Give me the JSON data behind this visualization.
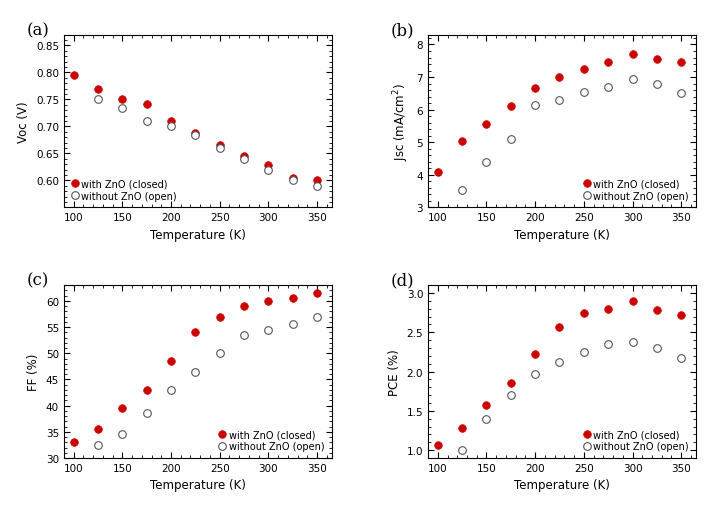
{
  "temp_with": [
    100,
    125,
    150,
    175,
    200,
    225,
    250,
    275,
    300,
    325,
    350
  ],
  "temp_without": [
    100,
    125,
    150,
    175,
    200,
    225,
    250,
    275,
    300,
    325,
    350
  ],
  "voc_with": [
    0.795,
    0.77,
    0.75,
    0.742,
    0.71,
    0.688,
    0.665,
    0.645,
    0.628,
    0.605,
    0.601
  ],
  "voc_without": [
    null,
    0.75,
    0.735,
    0.71,
    0.7,
    0.685,
    0.66,
    0.64,
    0.62,
    0.6,
    0.59
  ],
  "jsc_with": [
    4.1,
    5.05,
    5.55,
    6.1,
    6.65,
    7.0,
    7.25,
    7.45,
    7.7,
    7.55,
    7.45
  ],
  "jsc_without": [
    null,
    3.55,
    4.4,
    5.1,
    6.15,
    6.3,
    6.55,
    6.7,
    6.95,
    6.8,
    6.5
  ],
  "ff_with": [
    33.0,
    35.5,
    39.5,
    43.0,
    48.5,
    54.0,
    57.0,
    59.0,
    60.0,
    60.5,
    61.5
  ],
  "ff_without": [
    null,
    32.5,
    34.5,
    38.5,
    43.0,
    46.5,
    50.0,
    53.5,
    54.5,
    55.5,
    57.0
  ],
  "pce_with": [
    1.07,
    1.28,
    1.58,
    1.85,
    2.22,
    2.57,
    2.75,
    2.8,
    2.9,
    2.78,
    2.72
  ],
  "pce_without": [
    null,
    1.0,
    1.4,
    1.7,
    1.97,
    2.12,
    2.25,
    2.35,
    2.38,
    2.3,
    2.17
  ],
  "closed_color": "#cc0000",
  "open_color": "#555555",
  "marker_size": 5.5,
  "label_with": "with ZnO (closed)",
  "label_without": "without ZnO (open)",
  "xlabel": "Temperature (K)",
  "ylabel_a": "Voc (V)",
  "ylabel_b": "Jsc (mA/cm$^2$)",
  "ylabel_c": "FF (%)",
  "ylabel_d": "PCE (%)",
  "panel_labels": [
    "(a)",
    "(b)",
    "(c)",
    "(d)"
  ],
  "xlim": [
    90,
    365
  ],
  "xticks": [
    100,
    150,
    200,
    250,
    300,
    350
  ],
  "ylim_a": [
    0.55,
    0.87
  ],
  "yticks_a": [
    0.6,
    0.65,
    0.7,
    0.75,
    0.8,
    0.85
  ],
  "ylim_b": [
    3.0,
    8.3
  ],
  "yticks_b": [
    3,
    4,
    5,
    6,
    7,
    8
  ],
  "ylim_c": [
    30,
    63
  ],
  "yticks_c": [
    30,
    35,
    40,
    45,
    50,
    55,
    60
  ],
  "ylim_d": [
    0.9,
    3.1
  ],
  "yticks_d": [
    1.0,
    1.5,
    2.0,
    2.5,
    3.0
  ]
}
